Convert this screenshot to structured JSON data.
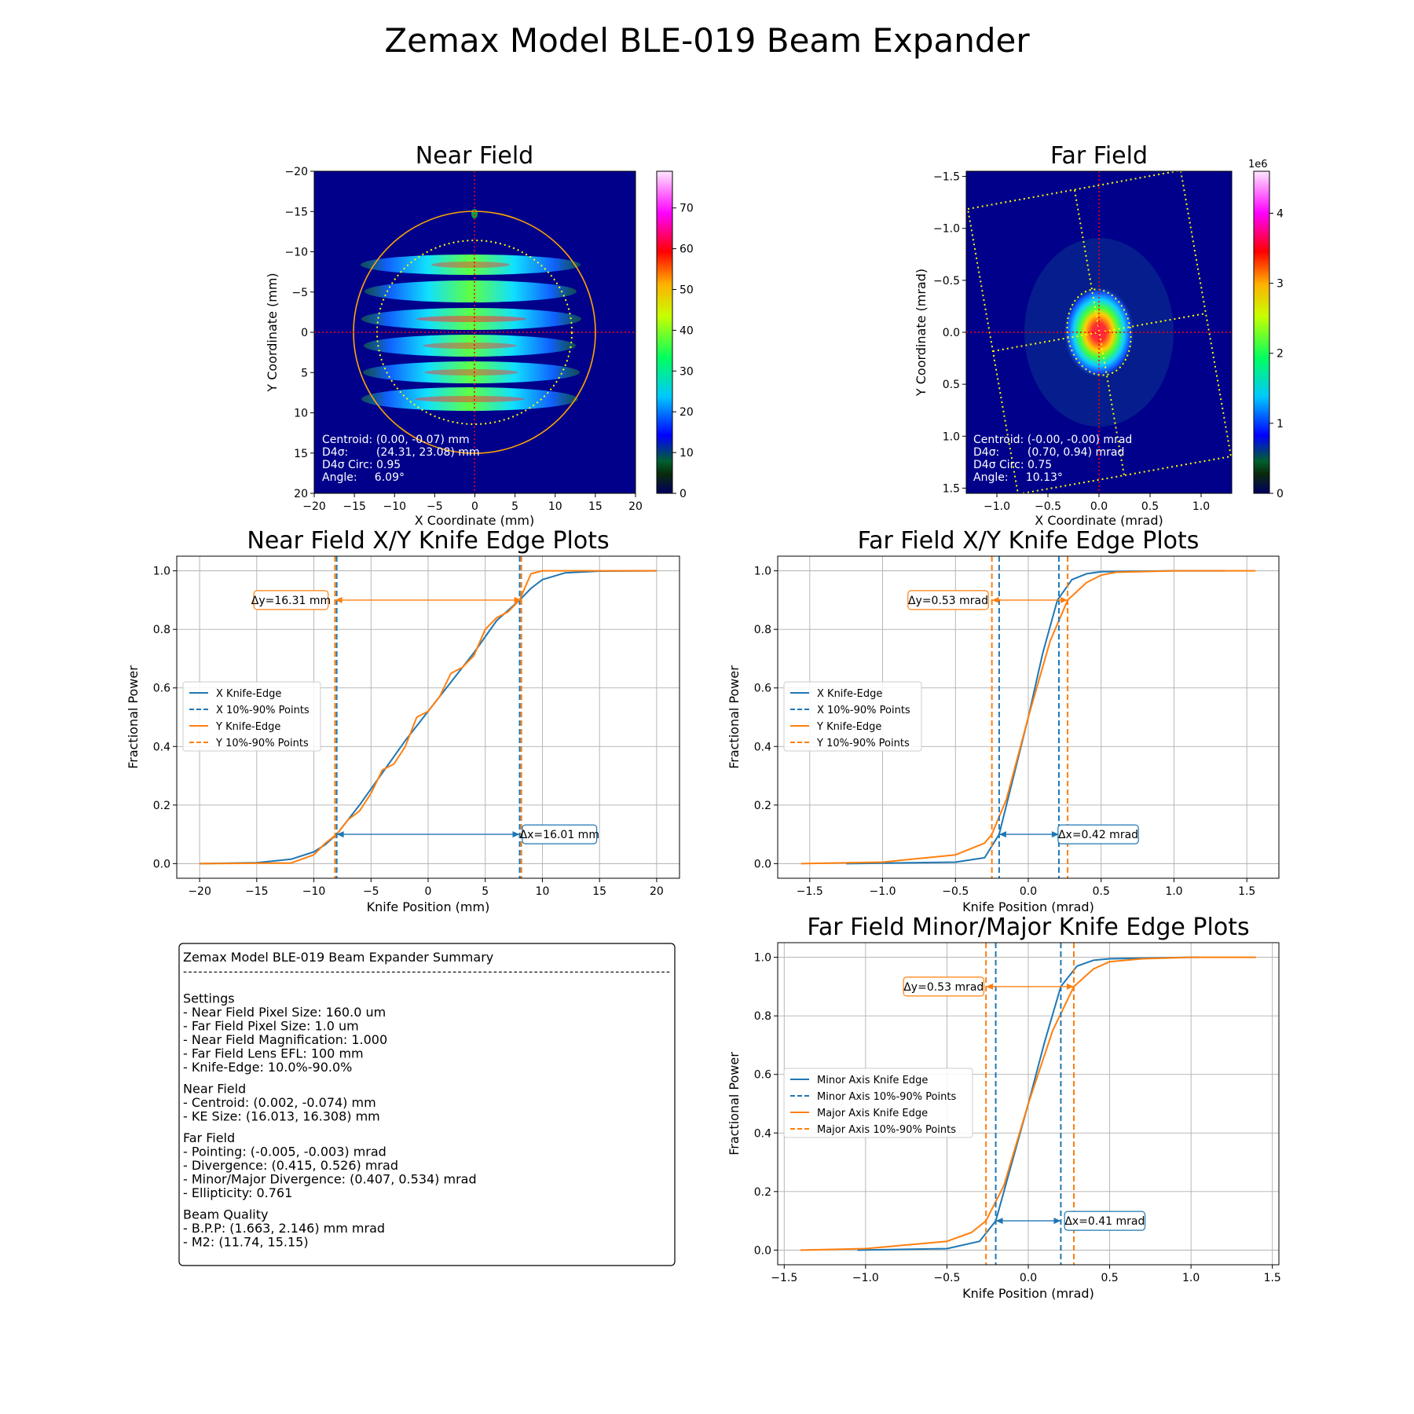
{
  "figure": {
    "title": "Zemax Model BLE-019 Beam Expander"
  },
  "near_field": {
    "title": "Near Field",
    "xlabel": "X Coordinate (mm)",
    "ylabel": "Y Coordinate (mm)",
    "xticks": [
      "−20",
      "−15",
      "−10",
      "−5",
      "0",
      "5",
      "10",
      "15",
      "20"
    ],
    "yticks": [
      "−20",
      "−15",
      "−10",
      "−5",
      "0",
      "5",
      "10",
      "15",
      "20"
    ],
    "colorbar_ticks": [
      "0",
      "10",
      "20",
      "30",
      "40",
      "50",
      "60",
      "70"
    ],
    "info_lines": [
      "Centroid: (0.00, -0.07) mm",
      "D4σ:        (24.31, 23.08) mm",
      "D4σ Circ: 0.95",
      "Angle:     6.09°"
    ],
    "colors": {
      "background": "#00008b",
      "circle": "#ffa500",
      "crosshair": "#ff0000",
      "ellipse": "#ffff00"
    }
  },
  "far_field": {
    "title": "Far Field",
    "xlabel": "X Coordinate (mrad)",
    "ylabel": "Y Coordinate (mrad)",
    "xticks": [
      "−1.0",
      "−0.5",
      "0.0",
      "0.5",
      "1.0"
    ],
    "yticks": [
      "−1.5",
      "−1.0",
      "−0.5",
      "0.0",
      "0.5",
      "1.0",
      "1.5"
    ],
    "colorbar_ticks": [
      "0",
      "1",
      "2",
      "3",
      "4"
    ],
    "colorbar_exponent": "1e6",
    "info_lines": [
      "Centroid: (-0.00, -0.00) mrad",
      "D4σ:        (0.70, 0.94) mrad",
      "D4σ Circ: 0.75",
      "Angle:     10.13°"
    ]
  },
  "summary": {
    "title": "Zemax Model BLE-019 Beam Expander Summary",
    "separator": "------------------------------------------------------------------------------------------------",
    "sections": [
      {
        "heading": "Settings",
        "lines": [
          "- Near Field Pixel Size: 160.0 um",
          "- Far Field Pixel Size: 1.0 um",
          "- Near Field Magnification: 1.000",
          "- Far Field Lens EFL: 100 mm",
          "- Knife-Edge: 10.0%-90.0%"
        ]
      },
      {
        "heading": "Near Field",
        "lines": [
          "- Centroid: (0.002, -0.074) mm",
          "- KE Size: (16.013, 16.308) mm"
        ]
      },
      {
        "heading": "Far Field",
        "lines": [
          "- Pointing: (-0.005, -0.003) mrad",
          "- Divergence: (0.415, 0.526) mrad",
          "- Minor/Major Divergence: (0.407, 0.534) mrad",
          "- Ellipticity: 0.761"
        ]
      },
      {
        "heading": "Beam Quality",
        "lines": [
          "- B.P.P: (1.663, 2.146) mm mrad",
          "- M2:    (11.74, 15.15)"
        ]
      }
    ]
  },
  "chart_data": [
    {
      "type": "line",
      "title": "Near Field X/Y Knife Edge Plots",
      "xlabel": "Knife Position (mm)",
      "ylabel": "Fractional Power",
      "xlim": [
        -22,
        22
      ],
      "ylim": [
        -0.05,
        1.05
      ],
      "xticks": [
        -20,
        -15,
        -10,
        -5,
        0,
        5,
        10,
        15,
        20
      ],
      "yticks": [
        0.0,
        0.2,
        0.4,
        0.6,
        0.8,
        1.0
      ],
      "grid": true,
      "legend_position": "center-left",
      "legend": [
        "X Knife-Edge",
        "X 10%-90% Points",
        "Y Knife-Edge",
        "Y 10%-90% Points"
      ],
      "series": [
        {
          "name": "X Knife-Edge",
          "color": "#1f77b4",
          "x": [
            -20,
            -15,
            -12,
            -10,
            -9,
            -8,
            -6,
            -4,
            -2,
            0,
            2,
            4,
            6,
            8,
            9,
            10,
            12,
            15,
            20
          ],
          "y": [
            0.0,
            0.003,
            0.015,
            0.04,
            0.065,
            0.1,
            0.2,
            0.31,
            0.42,
            0.52,
            0.62,
            0.72,
            0.83,
            0.9,
            0.94,
            0.97,
            0.993,
            0.999,
            1.0
          ]
        },
        {
          "name": "Y Knife-Edge",
          "color": "#ff7f0e",
          "x": [
            -20,
            -12,
            -10,
            -9,
            -8,
            -7,
            -6,
            -5,
            -4,
            -3,
            -2,
            -1,
            0,
            1,
            2,
            3,
            4,
            5,
            6,
            7,
            8,
            9,
            10,
            15,
            20
          ],
          "y": [
            0.0,
            0.002,
            0.03,
            0.07,
            0.1,
            0.15,
            0.18,
            0.24,
            0.32,
            0.34,
            0.4,
            0.5,
            0.52,
            0.57,
            0.65,
            0.67,
            0.71,
            0.8,
            0.84,
            0.86,
            0.9,
            0.99,
            1.0,
            1.0,
            1.0
          ]
        }
      ],
      "vlines": [
        {
          "name": "X 10%-90% Points",
          "color": "#1f77b4",
          "x": [
            -8.0,
            8.01
          ]
        },
        {
          "name": "Y 10%-90% Points",
          "color": "#ff7f0e",
          "x": [
            -8.15,
            8.16
          ]
        }
      ],
      "annotations": [
        {
          "text": "Δy=16.31 mm",
          "color": "#ff7f0e",
          "x1": -8.15,
          "x2": 8.16,
          "y": 0.9,
          "label_x": -12.0
        },
        {
          "text": "Δx=16.01 mm",
          "color": "#1f77b4",
          "x1": -8.0,
          "x2": 8.01,
          "y": 0.1,
          "label_x": 11.5
        }
      ]
    },
    {
      "type": "line",
      "title": "Far Field X/Y Knife Edge Plots",
      "xlabel": "Knife Position (mrad)",
      "ylabel": "Fractional Power",
      "xlim": [
        -1.72,
        1.72
      ],
      "ylim": [
        -0.05,
        1.05
      ],
      "xticks": [
        -1.5,
        -1.0,
        -0.5,
        0.0,
        0.5,
        1.0,
        1.5
      ],
      "yticks": [
        0.0,
        0.2,
        0.4,
        0.6,
        0.8,
        1.0
      ],
      "grid": true,
      "legend_position": "center-left",
      "legend": [
        "X Knife-Edge",
        "X 10%-90% Points",
        "Y Knife-Edge",
        "Y 10%-90% Points"
      ],
      "series": [
        {
          "name": "X Knife-Edge",
          "color": "#1f77b4",
          "x": [
            -1.25,
            -0.5,
            -0.3,
            -0.2,
            -0.1,
            0.0,
            0.1,
            0.2,
            0.3,
            0.4,
            0.5,
            1.0,
            1.35
          ],
          "y": [
            0.0,
            0.005,
            0.02,
            0.1,
            0.3,
            0.5,
            0.72,
            0.9,
            0.97,
            0.99,
            0.997,
            1.0,
            1.0
          ]
        },
        {
          "name": "Y Knife-Edge",
          "color": "#ff7f0e",
          "x": [
            -1.56,
            -1.0,
            -0.5,
            -0.3,
            -0.25,
            -0.15,
            0.0,
            0.15,
            0.27,
            0.4,
            0.5,
            0.6,
            1.0,
            1.56
          ],
          "y": [
            0.0,
            0.005,
            0.03,
            0.07,
            0.1,
            0.22,
            0.5,
            0.76,
            0.9,
            0.96,
            0.985,
            0.995,
            1.0,
            1.0
          ]
        }
      ],
      "vlines": [
        {
          "name": "X 10%-90% Points",
          "color": "#1f77b4",
          "x": [
            -0.2,
            0.21
          ]
        },
        {
          "name": "Y 10%-90% Points",
          "color": "#ff7f0e",
          "x": [
            -0.25,
            0.27
          ]
        }
      ],
      "annotations": [
        {
          "text": "Δy=0.53 mrad",
          "color": "#ff7f0e",
          "x1": -0.25,
          "x2": 0.27,
          "y": 0.9,
          "label_x": -0.55
        },
        {
          "text": "Δx=0.42 mrad",
          "color": "#1f77b4",
          "x1": -0.2,
          "x2": 0.21,
          "y": 0.1,
          "label_x": 0.48
        }
      ]
    },
    {
      "type": "line",
      "title": "Far Field Minor/Major Knife Edge Plots",
      "xlabel": "Knife Position (mrad)",
      "ylabel": "Fractional Power",
      "xlim": [
        -1.54,
        1.54
      ],
      "ylim": [
        -0.05,
        1.05
      ],
      "xticks": [
        -1.5,
        -1.0,
        -0.5,
        0.0,
        0.5,
        1.0,
        1.5
      ],
      "yticks": [
        0.0,
        0.2,
        0.4,
        0.6,
        0.8,
        1.0
      ],
      "grid": true,
      "legend_position": "center-left",
      "legend": [
        "Minor Axis Knife Edge",
        "Minor Axis 10%-90% Points",
        "Major Axis Knife Edge",
        "Major Axis 10%-90% Points"
      ],
      "series": [
        {
          "name": "Minor Axis Knife Edge",
          "color": "#1f77b4",
          "x": [
            -1.05,
            -0.5,
            -0.3,
            -0.2,
            -0.1,
            0.0,
            0.1,
            0.2,
            0.3,
            0.4,
            0.5,
            1.0,
            1.05
          ],
          "y": [
            0.0,
            0.005,
            0.03,
            0.1,
            0.3,
            0.5,
            0.71,
            0.9,
            0.97,
            0.99,
            0.995,
            1.0,
            1.0
          ]
        },
        {
          "name": "Major Axis Knife Edge",
          "color": "#ff7f0e",
          "x": [
            -1.4,
            -1.0,
            -0.5,
            -0.35,
            -0.26,
            -0.15,
            0.0,
            0.15,
            0.28,
            0.4,
            0.5,
            0.7,
            1.0,
            1.4
          ],
          "y": [
            0.0,
            0.005,
            0.03,
            0.06,
            0.1,
            0.22,
            0.5,
            0.75,
            0.9,
            0.96,
            0.985,
            0.995,
            1.0,
            1.0
          ]
        }
      ],
      "vlines": [
        {
          "name": "Minor Axis 10%-90% Points",
          "color": "#1f77b4",
          "x": [
            -0.2,
            0.2
          ]
        },
        {
          "name": "Major Axis 10%-90% Points",
          "color": "#ff7f0e",
          "x": [
            -0.26,
            0.28
          ]
        }
      ],
      "annotations": [
        {
          "text": "Δy=0.53 mrad",
          "color": "#ff7f0e",
          "x1": -0.26,
          "x2": 0.28,
          "y": 0.9,
          "label_x": -0.52
        },
        {
          "text": "Δx=0.41 mrad",
          "color": "#1f77b4",
          "x1": -0.2,
          "x2": 0.2,
          "y": 0.1,
          "label_x": 0.47
        }
      ]
    }
  ]
}
